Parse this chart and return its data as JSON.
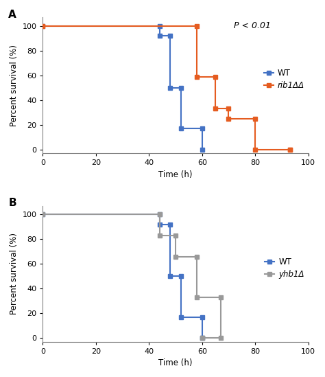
{
  "panel_A": {
    "WT": {
      "x": [
        0,
        44,
        44,
        48,
        48,
        52,
        52,
        60,
        60
      ],
      "y": [
        100,
        100,
        92,
        92,
        50,
        50,
        17,
        17,
        0
      ],
      "color": "#4472C4",
      "label": "WT",
      "italic": false
    },
    "rib1": {
      "x": [
        0,
        58,
        58,
        65,
        65,
        70,
        70,
        80,
        80,
        93,
        93
      ],
      "y": [
        100,
        100,
        59,
        59,
        33,
        33,
        25,
        25,
        0,
        0,
        0
      ],
      "color": "#E55C20",
      "label": "rib1ΔΔ",
      "italic": true
    },
    "series_order": [
      "WT",
      "rib1"
    ],
    "pvalue": "P < 0.01",
    "title_label": "A"
  },
  "panel_B": {
    "WT": {
      "x": [
        0,
        44,
        44,
        48,
        48,
        52,
        52,
        60,
        60
      ],
      "y": [
        100,
        100,
        92,
        92,
        50,
        50,
        17,
        17,
        0
      ],
      "color": "#4472C4",
      "label": "WT",
      "italic": false
    },
    "yhb1": {
      "x": [
        0,
        44,
        44,
        50,
        50,
        58,
        58,
        67,
        67,
        60,
        60
      ],
      "y": [
        100,
        100,
        83,
        83,
        66,
        66,
        33,
        33,
        0,
        0,
        0
      ],
      "color": "#999999",
      "label": "yhb1Δ",
      "italic": true
    },
    "series_order": [
      "WT",
      "yhb1"
    ],
    "title_label": "B"
  },
  "ylabel": "Percent survival (%)",
  "xlabel": "Time (h)",
  "xlim": [
    0,
    100
  ],
  "ylim": [
    -3,
    107
  ],
  "xticks": [
    0,
    20,
    40,
    60,
    80,
    100
  ],
  "yticks": [
    0,
    20,
    40,
    60,
    80,
    100
  ],
  "marker": "s",
  "markersize": 5,
  "linewidth": 1.5,
  "axis_linewidth": 0.8,
  "legend_fontsize": 8.5,
  "label_fontsize": 8.5,
  "tick_fontsize": 8,
  "pvalue_fontsize": 9,
  "panel_label_fontsize": 11
}
